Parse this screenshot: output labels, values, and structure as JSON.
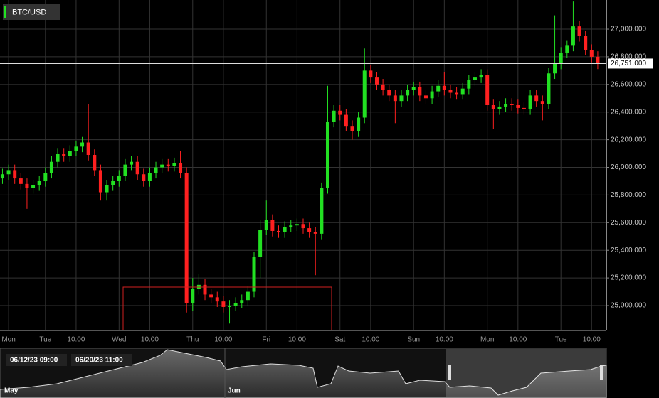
{
  "chart_data": {
    "type": "candlestick",
    "title": "BTC/USD",
    "up_color": "#22e022",
    "down_color": "#ff2020",
    "grid": true,
    "x": [
      10,
      12,
      14,
      16,
      18,
      20,
      22,
      24,
      26,
      28,
      30,
      32,
      34,
      36,
      38,
      40,
      42,
      44,
      46,
      48,
      50,
      52,
      54,
      56,
      58,
      60,
      62,
      64,
      66,
      68,
      70,
      72,
      74,
      76,
      78,
      80,
      82,
      84,
      86,
      88,
      90,
      92,
      94,
      96,
      98,
      100,
      102,
      104,
      106,
      108,
      110,
      112,
      114,
      116,
      118,
      120,
      122,
      124,
      126,
      128,
      130,
      132,
      134,
      136,
      138,
      140,
      142,
      144,
      146,
      148,
      150,
      152,
      154,
      156,
      158,
      160,
      162,
      164,
      166,
      168,
      170,
      172,
      174,
      176,
      178,
      180,
      182,
      184,
      186,
      188,
      190,
      192,
      194,
      196,
      198,
      200,
      202,
      204
    ],
    "open": [
      25920,
      25950,
      25980,
      25920,
      25880,
      25850,
      25870,
      25900,
      25960,
      26040,
      26100,
      26080,
      26120,
      26150,
      26180,
      26090,
      25980,
      25820,
      25870,
      25900,
      25940,
      26020,
      26040,
      25950,
      25900,
      25960,
      26000,
      26020,
      26010,
      26030,
      25960,
      25020,
      25120,
      25150,
      25080,
      25060,
      25030,
      24990,
      25000,
      25020,
      25040,
      25100,
      25350,
      25550,
      25620,
      25540,
      25530,
      25570,
      25580,
      25590,
      25560,
      25530,
      25520,
      25850,
      26330,
      26410,
      26380,
      26300,
      26260,
      26360,
      26700,
      26650,
      26600,
      26560,
      26520,
      26480,
      26520,
      26560,
      26580,
      26520,
      26500,
      26550,
      26590,
      26560,
      26540,
      26530,
      26570,
      26630,
      26650,
      26670,
      26450,
      26420,
      26440,
      26460,
      26450,
      26430,
      26420,
      26520,
      26480,
      26460,
      26680,
      26750,
      26830,
      26880,
      27020,
      26950,
      26850,
      26800
    ],
    "high": [
      25990,
      26020,
      26020,
      25960,
      25920,
      25910,
      25940,
      26000,
      26080,
      26140,
      26140,
      26160,
      26190,
      26220,
      26460,
      26130,
      26020,
      25910,
      25940,
      25980,
      26060,
      26080,
      26080,
      25990,
      26000,
      26040,
      26060,
      26060,
      26070,
      26120,
      26000,
      25200,
      25230,
      25190,
      25120,
      25100,
      25070,
      25040,
      25060,
      25080,
      25140,
      25390,
      25620,
      25760,
      25660,
      25580,
      25610,
      25620,
      25630,
      25630,
      25600,
      25570,
      25890,
      26590,
      26450,
      26450,
      26420,
      26340,
      26400,
      26860,
      26740,
      26690,
      26640,
      26600,
      26560,
      26560,
      26600,
      26620,
      26620,
      26560,
      26590,
      26630,
      26690,
      26600,
      26580,
      26610,
      26670,
      26690,
      26710,
      26710,
      26490,
      26480,
      26500,
      26500,
      26490,
      26470,
      26560,
      26560,
      26520,
      26720,
      27100,
      26870,
      26920,
      27200,
      27060,
      26990,
      26890,
      26840
    ],
    "low": [
      25880,
      25910,
      25880,
      25840,
      25700,
      25810,
      25830,
      25860,
      25920,
      26000,
      26040,
      26040,
      26080,
      26110,
      26050,
      25940,
      25760,
      25760,
      25830,
      25860,
      25900,
      25980,
      25910,
      25860,
      25860,
      25920,
      25960,
      25970,
      25970,
      25920,
      24950,
      24960,
      25080,
      25040,
      25020,
      24990,
      24950,
      24870,
      24960,
      24980,
      25000,
      25060,
      25200,
      25510,
      25500,
      25490,
      25490,
      25530,
      25540,
      25520,
      25490,
      25220,
      25480,
      25810,
      26290,
      26340,
      26260,
      26200,
      26220,
      26320,
      26610,
      26560,
      26520,
      26480,
      26320,
      26440,
      26480,
      26520,
      26480,
      26460,
      26460,
      26510,
      26520,
      26500,
      26490,
      26490,
      26530,
      26590,
      26610,
      26410,
      26280,
      26380,
      26400,
      26410,
      26390,
      26380,
      26380,
      26440,
      26340,
      26420,
      26640,
      26710,
      26790,
      26840,
      26910,
      26810,
      26760,
      26711
    ],
    "close": [
      25950,
      25980,
      25920,
      25880,
      25850,
      25870,
      25900,
      25960,
      26040,
      26100,
      26080,
      26120,
      26150,
      26180,
      26090,
      25980,
      25820,
      25870,
      25900,
      25940,
      26020,
      26040,
      25950,
      25900,
      25960,
      26000,
      26020,
      26010,
      26030,
      25960,
      25020,
      25120,
      25150,
      25080,
      25060,
      25030,
      24990,
      25000,
      25020,
      25040,
      25100,
      25350,
      25550,
      25620,
      25540,
      25530,
      25570,
      25580,
      25590,
      25560,
      25530,
      25520,
      25850,
      26330,
      26410,
      26380,
      26300,
      26260,
      26360,
      26700,
      26650,
      26600,
      26560,
      26520,
      26480,
      26520,
      26560,
      26580,
      26520,
      26500,
      26550,
      26590,
      26560,
      26540,
      26530,
      26570,
      26630,
      26650,
      26670,
      26450,
      26420,
      26440,
      26460,
      26450,
      26430,
      26420,
      26520,
      26480,
      26460,
      26680,
      26750,
      26830,
      26880,
      27020,
      26950,
      26850,
      26800,
      26751
    ],
    "xlim": [
      9.2,
      206.8
    ],
    "ylim": [
      24820,
      27211
    ],
    "xticks": [
      {
        "value": 12,
        "label": "Mon"
      },
      {
        "value": 24,
        "label": "Tue"
      },
      {
        "value": 34,
        "label": "10:00"
      },
      {
        "value": 48,
        "label": "Wed"
      },
      {
        "value": 58,
        "label": "10:00"
      },
      {
        "value": 72,
        "label": "Thu"
      },
      {
        "value": 82,
        "label": "10:00"
      },
      {
        "value": 96,
        "label": "Fri"
      },
      {
        "value": 106,
        "label": "10:00"
      },
      {
        "value": 120,
        "label": "Sat"
      },
      {
        "value": 130,
        "label": "10:00"
      },
      {
        "value": 144,
        "label": "Sun"
      },
      {
        "value": 154,
        "label": "10:00"
      },
      {
        "value": 168,
        "label": "Mon"
      },
      {
        "value": 178,
        "label": "10:00"
      },
      {
        "value": 192,
        "label": "Tue"
      },
      {
        "value": 202,
        "label": "10:00"
      }
    ],
    "yticks": [
      {
        "value": 25000,
        "label": "25,000.000"
      },
      {
        "value": 25200,
        "label": "25,200.000"
      },
      {
        "value": 25400,
        "label": "25,400.000"
      },
      {
        "value": 25600,
        "label": "25,600.000"
      },
      {
        "value": 25800,
        "label": "25,800.000"
      },
      {
        "value": 26000,
        "label": "26,000.000"
      },
      {
        "value": 26200,
        "label": "26,200.000"
      },
      {
        "value": 26400,
        "label": "26,400.000"
      },
      {
        "value": 26600,
        "label": "26,600.000"
      },
      {
        "value": 26800,
        "label": "26,800.000"
      },
      {
        "value": 27000,
        "label": "27,000.000"
      }
    ],
    "last_price": {
      "value": 26751,
      "label": "26,751.000"
    }
  },
  "navigator": {
    "range_start": "06/12/23 09:00",
    "range_end": "06/20/23 11:00",
    "months": [
      "May",
      "Jun"
    ]
  }
}
